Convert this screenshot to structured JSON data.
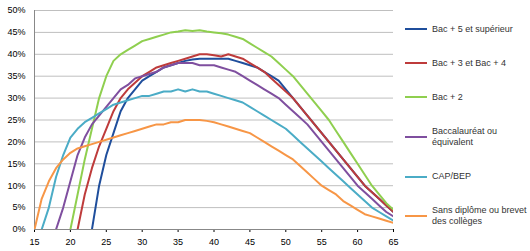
{
  "chart_data": {
    "type": "line",
    "x": [
      15,
      16,
      17,
      18,
      19,
      20,
      21,
      22,
      23,
      24,
      25,
      26,
      27,
      28,
      29,
      30,
      31,
      32,
      33,
      34,
      35,
      36,
      37,
      38,
      39,
      40,
      41,
      42,
      43,
      44,
      45,
      46,
      47,
      48,
      49,
      50,
      51,
      52,
      53,
      54,
      55,
      56,
      57,
      58,
      59,
      60,
      61,
      62,
      63,
      64,
      65
    ],
    "xlim": [
      15,
      65
    ],
    "xticks": [
      15,
      20,
      25,
      30,
      35,
      40,
      45,
      50,
      55,
      60,
      65
    ],
    "ylim": [
      0,
      50
    ],
    "yticks": [
      {
        "value": 0,
        "label": "0%"
      },
      {
        "value": 5,
        "label": "5%"
      },
      {
        "value": 10,
        "label": "10%"
      },
      {
        "value": 15,
        "label": "15%"
      },
      {
        "value": 20,
        "label": "20%"
      },
      {
        "value": 25,
        "label": "25%"
      },
      {
        "value": 30,
        "label": "30%"
      },
      {
        "value": 35,
        "label": "35%"
      },
      {
        "value": 40,
        "label": "40%"
      },
      {
        "value": 45,
        "label": "45%"
      },
      {
        "value": 50,
        "label": "50%"
      }
    ],
    "grid": true,
    "legend": "right",
    "series": [
      {
        "name": "Bac + 5 et supérieur",
        "color": "#1f4e9c",
        "values": [
          null,
          null,
          null,
          null,
          null,
          null,
          null,
          null,
          0,
          10,
          17,
          22,
          27,
          30,
          32,
          34,
          35,
          36,
          37,
          37.5,
          38,
          38.5,
          38.8,
          39,
          39,
          39,
          39,
          39,
          38.5,
          38,
          37.5,
          37,
          36,
          35,
          34,
          32,
          30,
          28,
          26,
          24,
          22,
          20,
          18,
          16,
          14,
          12,
          10,
          8.5,
          7,
          5.5,
          4
        ]
      },
      {
        "name": "Bac + 3 et Bac + 4",
        "color": "#be3b3b",
        "values": [
          null,
          null,
          null,
          null,
          null,
          null,
          0,
          8,
          14,
          19,
          23,
          27,
          30,
          32,
          33.5,
          35,
          36,
          37,
          37.5,
          38,
          38.5,
          39,
          39.5,
          40,
          40,
          39.8,
          39.5,
          40,
          39.5,
          39,
          38,
          37,
          36,
          34.5,
          33,
          31.5,
          30,
          28,
          26,
          24,
          22,
          20,
          18,
          16,
          14,
          12,
          10,
          8.5,
          7,
          5.5,
          4
        ]
      },
      {
        "name": "Bac + 2",
        "color": "#8fcf4f",
        "values": [
          null,
          null,
          null,
          null,
          null,
          0,
          8,
          16,
          23,
          30,
          35,
          38.5,
          40,
          41,
          42,
          43,
          43.5,
          44,
          44.5,
          45,
          45.2,
          45.5,
          45.3,
          45.5,
          45.2,
          45,
          44.8,
          44.5,
          44,
          43.5,
          42.5,
          41.5,
          40.5,
          39.5,
          38,
          36.5,
          35,
          33,
          31,
          29,
          27,
          25,
          22.5,
          20,
          17.5,
          15,
          12.5,
          10,
          8,
          6,
          4.5
        ]
      },
      {
        "name": "Baccalauréat ou équivalent",
        "color": "#7f4f9f",
        "values": [
          null,
          null,
          null,
          0,
          5,
          11,
          17,
          21,
          24,
          26,
          28,
          30,
          32,
          33,
          34.5,
          35,
          35.5,
          36,
          37,
          37.5,
          38,
          38,
          38,
          37.5,
          37.5,
          37.5,
          37,
          36.5,
          36,
          35,
          34,
          33,
          32,
          31,
          30,
          28.5,
          27,
          25.5,
          24,
          22,
          20,
          18,
          16,
          14,
          12,
          10,
          8.5,
          7,
          5.5,
          4,
          3
        ]
      },
      {
        "name": "CAP/BEP",
        "color": "#4bacc6",
        "values": [
          null,
          0,
          5,
          12,
          17,
          21,
          23,
          24.5,
          25.5,
          26.5,
          27.5,
          28.5,
          29,
          29.5,
          30,
          30.5,
          30.5,
          31,
          31.5,
          31.5,
          32,
          31.5,
          32,
          31.5,
          31.5,
          31,
          30.5,
          30,
          29.5,
          29,
          28,
          27,
          26,
          25,
          24,
          23,
          21.5,
          20,
          18.5,
          17,
          15.5,
          14,
          12.5,
          11,
          9.5,
          8,
          6.5,
          5,
          4,
          3,
          2
        ]
      },
      {
        "name": "Sans diplôme ou brevet des collèges",
        "color": "#f79646",
        "values": [
          0,
          7,
          11,
          14,
          16,
          17.5,
          18.5,
          19,
          19.5,
          20,
          20.5,
          21,
          21.5,
          22,
          22.5,
          23,
          23.5,
          24,
          24,
          24.5,
          24.5,
          25,
          25,
          25,
          24.8,
          24.5,
          24,
          23.5,
          23,
          22.5,
          22,
          21,
          20,
          19,
          18,
          17,
          16,
          14.5,
          13,
          11.5,
          10,
          9,
          8,
          6.5,
          5.5,
          4.5,
          3.5,
          3,
          2.5,
          2,
          1.5
        ]
      }
    ]
  }
}
